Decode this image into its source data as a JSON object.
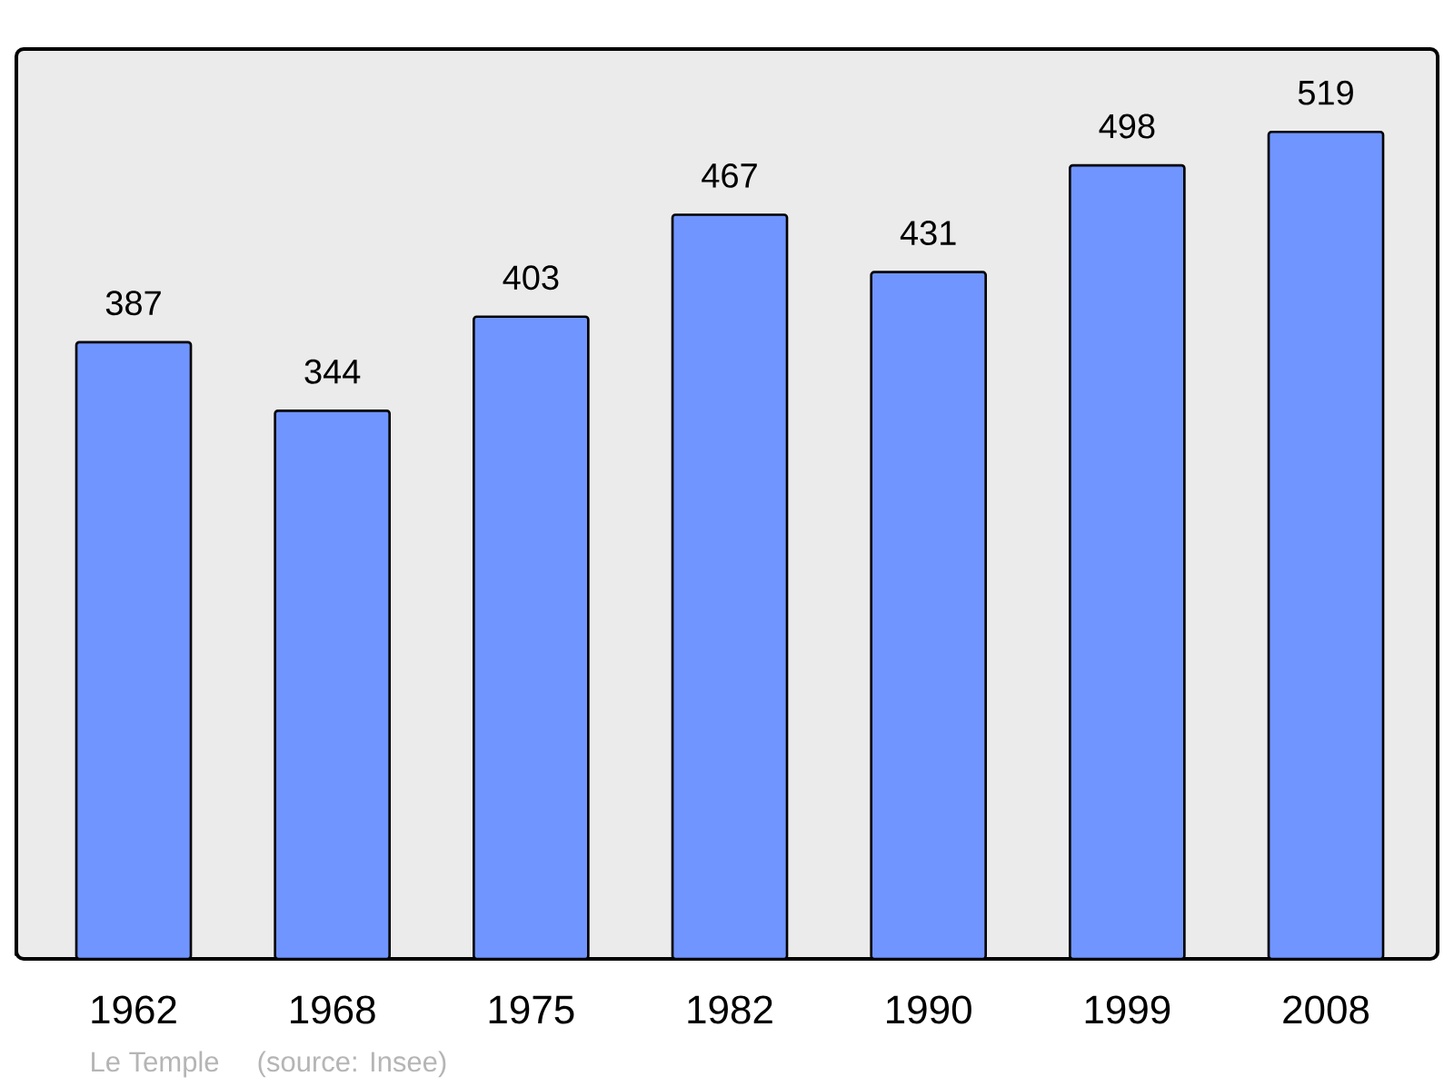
{
  "chart_data": {
    "type": "bar",
    "categories": [
      "1962",
      "1968",
      "1975",
      "1982",
      "1990",
      "1999",
      "2008"
    ],
    "values": [
      387,
      344,
      403,
      467,
      431,
      498,
      519
    ],
    "color": "#7095ff",
    "ylim": [
      0,
      571
    ],
    "tick_labels": "x",
    "data_labels": true,
    "annotations": [
      "Le Temple",
      "(source: Insee)"
    ]
  }
}
